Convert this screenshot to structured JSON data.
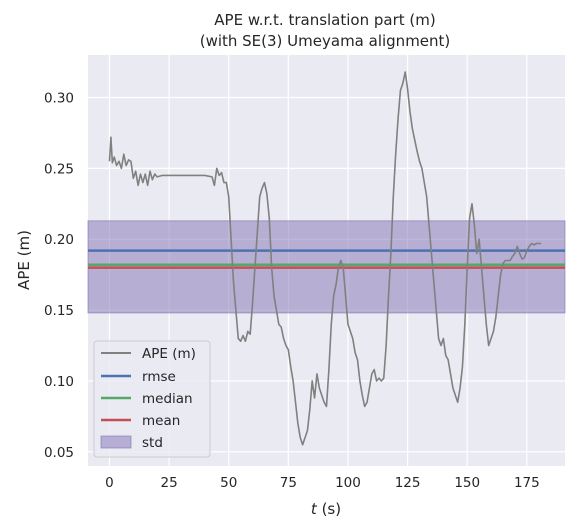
{
  "chart_data": {
    "type": "line",
    "title": "APE w.r.t. translation part (m)",
    "subtitle": "(with SE(3) Umeyama alignment)",
    "xlabel_var": "t",
    "xlabel_unit": "(s)",
    "ylabel": "APE (m)",
    "xlim": [
      -9,
      191
    ],
    "ylim": [
      0.04,
      0.33
    ],
    "xticks": [
      0,
      25,
      50,
      75,
      100,
      125,
      150,
      175
    ],
    "xtick_labels": [
      "0",
      "25",
      "50",
      "75",
      "100",
      "125",
      "150",
      "175"
    ],
    "yticks": [
      0.05,
      0.1,
      0.15,
      0.2,
      0.25,
      0.3
    ],
    "ytick_labels": [
      "0.05",
      "0.10",
      "0.15",
      "0.20",
      "0.25",
      "0.30"
    ],
    "grid": true,
    "legend_position": "lower-left",
    "legend": {
      "ape": "APE (m)",
      "rmse": "rmse",
      "median": "median",
      "mean": "mean",
      "std": "std"
    },
    "stats": {
      "rmse": 0.192,
      "median": 0.182,
      "mean": 0.18,
      "std_band": [
        0.148,
        0.213
      ]
    },
    "series": [
      {
        "name": "APE (m)",
        "color": "#808080",
        "x": [
          0,
          0.6,
          1.2,
          2,
          3,
          4,
          5,
          6,
          7,
          8,
          9,
          10,
          11,
          12,
          13,
          14,
          15,
          16,
          17,
          18,
          19,
          20,
          22,
          25,
          30,
          35,
          40,
          43,
          44,
          45,
          46,
          47,
          48,
          49,
          50,
          51,
          52,
          53,
          54,
          55,
          56,
          57,
          58,
          59,
          60,
          61,
          62,
          63,
          64,
          65,
          66,
          67,
          68,
          69,
          70,
          71,
          72,
          73,
          74,
          75,
          76,
          77,
          78,
          79,
          80,
          81,
          82,
          83,
          84,
          85,
          86,
          87,
          88,
          89,
          90,
          91,
          92,
          93,
          94,
          95,
          96,
          97,
          98,
          99,
          100,
          101,
          102,
          103,
          104,
          105,
          106,
          107,
          108,
          109,
          110,
          111,
          112,
          113,
          114,
          115,
          116,
          117,
          118,
          119,
          120,
          121,
          122,
          123,
          124,
          125,
          126,
          127,
          128,
          129,
          130,
          131,
          132,
          133,
          134,
          135,
          136,
          137,
          138,
          139,
          140,
          141,
          142,
          143,
          144,
          145,
          146,
          147,
          148,
          149,
          150,
          151,
          152,
          153,
          154,
          155,
          156,
          157,
          158,
          159,
          160,
          161,
          162,
          163,
          164,
          165,
          166,
          167,
          168,
          169,
          170,
          171,
          172,
          173,
          174,
          175,
          176,
          177,
          178,
          179,
          180,
          181
        ],
        "y": [
          0.255,
          0.272,
          0.254,
          0.258,
          0.252,
          0.255,
          0.25,
          0.26,
          0.252,
          0.256,
          0.255,
          0.243,
          0.248,
          0.238,
          0.246,
          0.24,
          0.246,
          0.238,
          0.248,
          0.242,
          0.246,
          0.244,
          0.245,
          0.245,
          0.245,
          0.245,
          0.245,
          0.244,
          0.238,
          0.25,
          0.245,
          0.247,
          0.24,
          0.24,
          0.23,
          0.2,
          0.17,
          0.15,
          0.13,
          0.128,
          0.132,
          0.128,
          0.135,
          0.133,
          0.155,
          0.18,
          0.205,
          0.23,
          0.236,
          0.24,
          0.232,
          0.215,
          0.18,
          0.16,
          0.15,
          0.14,
          0.138,
          0.13,
          0.125,
          0.122,
          0.11,
          0.1,
          0.085,
          0.07,
          0.06,
          0.055,
          0.06,
          0.065,
          0.08,
          0.1,
          0.088,
          0.105,
          0.095,
          0.09,
          0.085,
          0.082,
          0.108,
          0.14,
          0.16,
          0.168,
          0.18,
          0.185,
          0.18,
          0.16,
          0.14,
          0.135,
          0.13,
          0.12,
          0.115,
          0.1,
          0.09,
          0.082,
          0.085,
          0.095,
          0.105,
          0.108,
          0.1,
          0.102,
          0.1,
          0.102,
          0.125,
          0.16,
          0.19,
          0.23,
          0.26,
          0.285,
          0.305,
          0.31,
          0.318,
          0.306,
          0.29,
          0.278,
          0.27,
          0.262,
          0.255,
          0.25,
          0.24,
          0.23,
          0.21,
          0.19,
          0.17,
          0.15,
          0.13,
          0.125,
          0.13,
          0.118,
          0.115,
          0.105,
          0.095,
          0.09,
          0.085,
          0.095,
          0.11,
          0.14,
          0.18,
          0.215,
          0.225,
          0.21,
          0.19,
          0.2,
          0.18,
          0.16,
          0.14,
          0.125,
          0.13,
          0.135,
          0.145,
          0.16,
          0.175,
          0.183,
          0.185,
          0.185,
          0.185,
          0.188,
          0.19,
          0.195,
          0.19,
          0.186,
          0.187,
          0.192,
          0.195,
          0.197,
          0.196,
          0.197,
          0.197,
          0.197
        ]
      }
    ]
  },
  "colors": {
    "plot_bg": "#eaeaf2",
    "grid": "#ffffff",
    "ape": "#808080",
    "rmse": "#4c72b0",
    "median": "#55a868",
    "mean": "#c44e52",
    "std_fill": "#8172b3"
  }
}
